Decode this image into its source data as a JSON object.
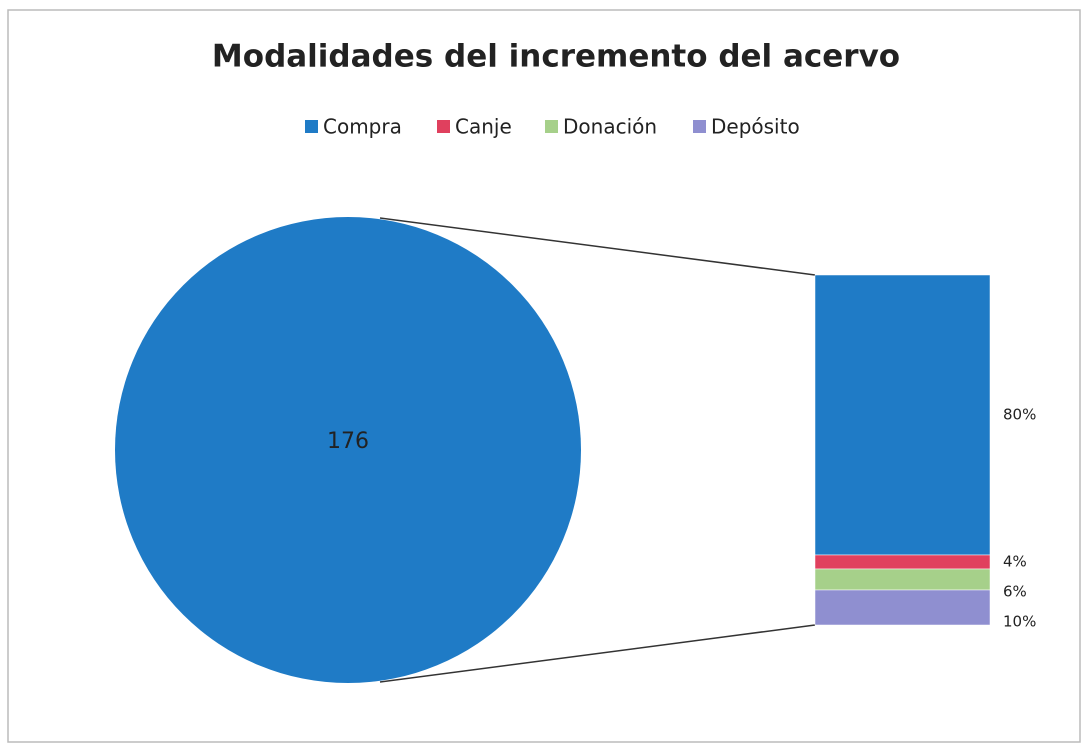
{
  "chart_data": {
    "type": "barofpie",
    "title": "Modalidades del incremento del acervo",
    "total": 176,
    "categories": [
      "Compra",
      "Canje",
      "Donación",
      "Depósito"
    ],
    "values": [
      80,
      4,
      6,
      10
    ],
    "value_labels": [
      "80%",
      "4%",
      "6%",
      "10%"
    ],
    "colors": [
      "#1f7bc6",
      "#e0405e",
      "#a6d08a",
      "#8f8fd0"
    ],
    "legend": "top"
  }
}
